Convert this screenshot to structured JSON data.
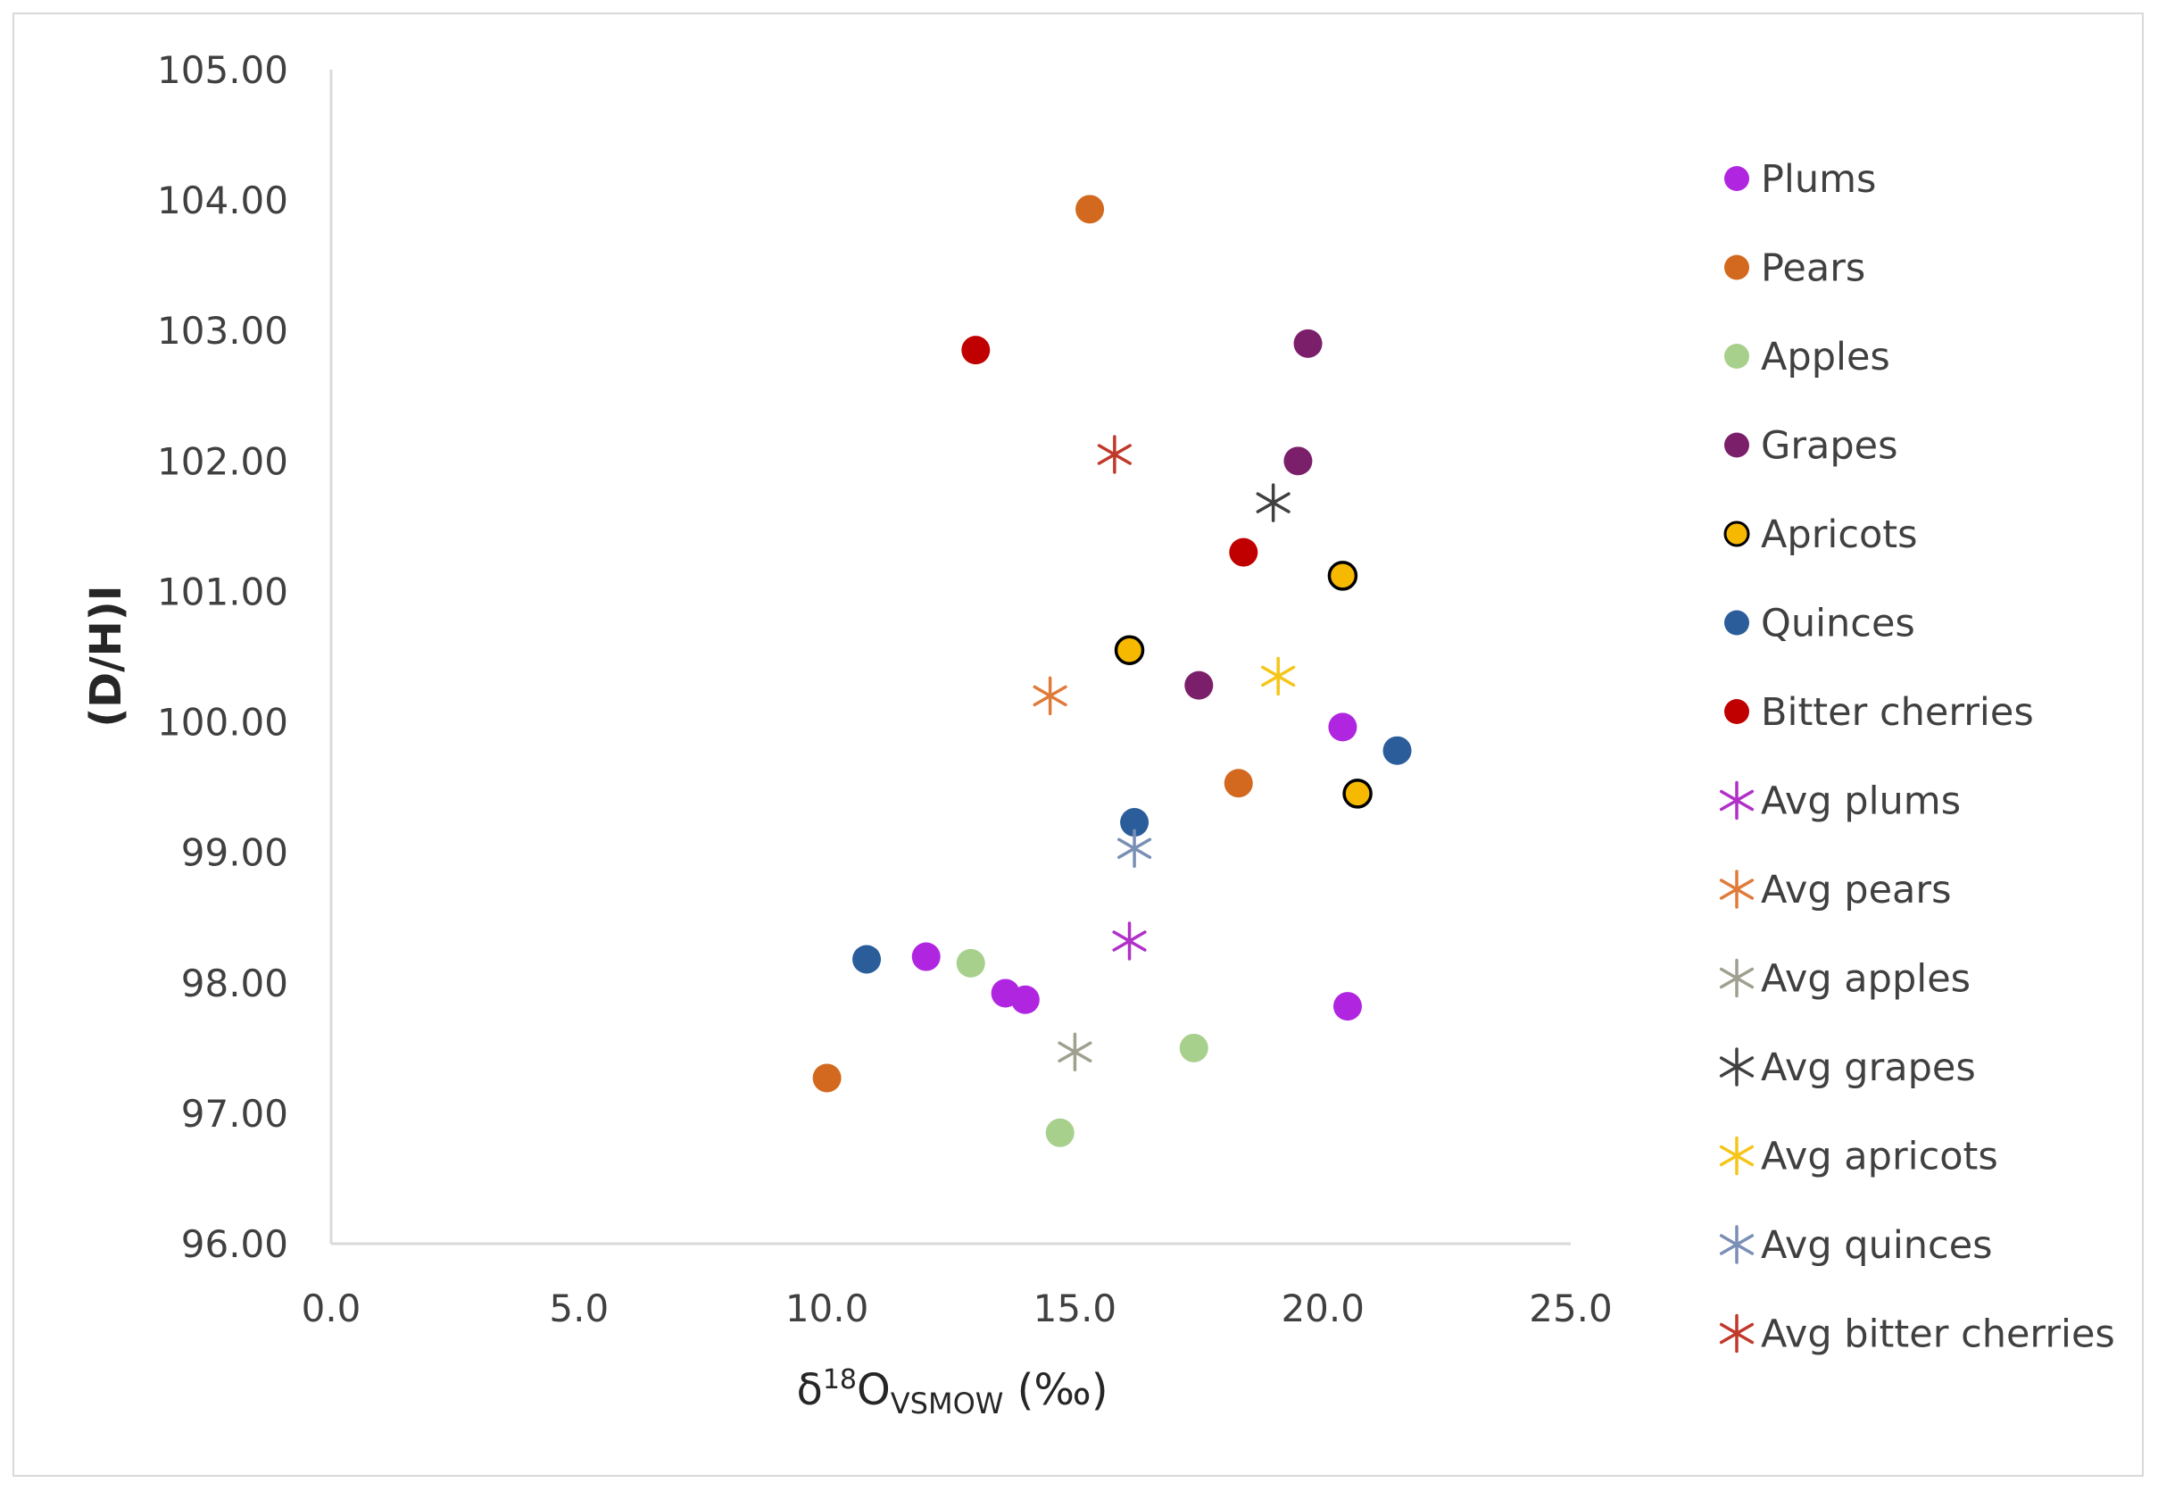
{
  "chart_data": {
    "type": "scatter",
    "title": "",
    "xlabel": {
      "base": "δ",
      "sup": "18",
      "main": "O",
      "sub": "VSMOW",
      "unit": " (‰)"
    },
    "ylabel": "(D/H)I",
    "xlim": [
      0,
      25
    ],
    "ylim": [
      96,
      105
    ],
    "x_ticks": [
      "0.0",
      "5.0",
      "10.0",
      "15.0",
      "20.0",
      "25.0"
    ],
    "y_ticks": [
      "96.00",
      "97.00",
      "98.00",
      "99.00",
      "100.00",
      "101.00",
      "102.00",
      "103.00",
      "104.00",
      "105.00"
    ],
    "grid": false,
    "legend_position": "right",
    "series": [
      {
        "name": "Plums",
        "marker": "circle",
        "color": "#b026e0",
        "edge": "",
        "points": [
          [
            12.0,
            98.2
          ],
          [
            13.6,
            97.92
          ],
          [
            14.0,
            97.87
          ],
          [
            20.4,
            99.96
          ],
          [
            20.5,
            97.82
          ]
        ]
      },
      {
        "name": "Pears",
        "marker": "circle",
        "color": "#d2691e",
        "edge": "",
        "points": [
          [
            15.3,
            103.93
          ],
          [
            18.3,
            99.53
          ],
          [
            10.0,
            97.27
          ]
        ]
      },
      {
        "name": "Apples",
        "marker": "circle",
        "color": "#a8d08d",
        "edge": "",
        "points": [
          [
            12.9,
            98.15
          ],
          [
            17.4,
            97.5
          ],
          [
            14.7,
            96.85
          ]
        ]
      },
      {
        "name": "Grapes",
        "marker": "circle",
        "color": "#7b1f6b",
        "edge": "",
        "points": [
          [
            19.7,
            102.9
          ],
          [
            19.5,
            102.0
          ],
          [
            17.5,
            100.28
          ]
        ]
      },
      {
        "name": "Apricots",
        "marker": "circle",
        "color": "#f7b800",
        "edge": "#000000",
        "points": [
          [
            20.4,
            101.12
          ],
          [
            16.1,
            100.55
          ],
          [
            20.7,
            99.45
          ]
        ]
      },
      {
        "name": "Quinces",
        "marker": "circle",
        "color": "#2a5d9a",
        "edge": "",
        "points": [
          [
            21.5,
            99.78
          ],
          [
            16.2,
            99.23
          ],
          [
            10.8,
            98.18
          ]
        ]
      },
      {
        "name": "Bitter cherries",
        "marker": "circle",
        "color": "#c00000",
        "edge": "",
        "points": [
          [
            13.0,
            102.85
          ],
          [
            18.4,
            101.3
          ]
        ]
      },
      {
        "name": "Avg plums",
        "marker": "star",
        "color": "#b030c8",
        "edge": "",
        "points": [
          [
            16.1,
            98.32
          ]
        ]
      },
      {
        "name": "Avg pears",
        "marker": "star",
        "color": "#e07b39",
        "edge": "",
        "points": [
          [
            14.5,
            100.2
          ]
        ]
      },
      {
        "name": "Avg apples",
        "marker": "star",
        "color": "#a0a090",
        "edge": "",
        "points": [
          [
            15.0,
            97.47
          ]
        ]
      },
      {
        "name": "Avg grapes",
        "marker": "star",
        "color": "#404040",
        "edge": "",
        "points": [
          [
            19.0,
            101.68
          ]
        ]
      },
      {
        "name": "Avg apricots",
        "marker": "star",
        "color": "#f5c518",
        "edge": "",
        "points": [
          [
            19.1,
            100.35
          ]
        ]
      },
      {
        "name": "Avg quinces",
        "marker": "star",
        "color": "#7a8fb5",
        "edge": "",
        "points": [
          [
            16.2,
            99.03
          ]
        ]
      },
      {
        "name": "Avg bitter cherries",
        "marker": "star",
        "color": "#c0392b",
        "edge": "",
        "points": [
          [
            15.8,
            102.05
          ]
        ]
      }
    ]
  }
}
